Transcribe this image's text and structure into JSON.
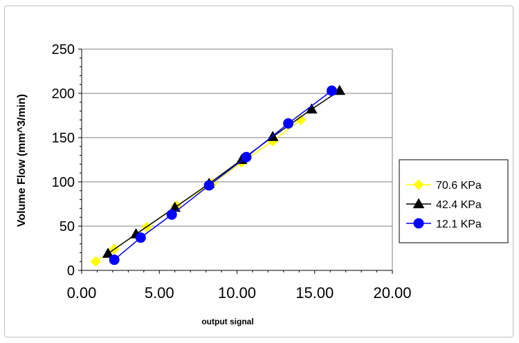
{
  "chart_data": {
    "type": "line",
    "title": "",
    "xlabel": "output signal",
    "ylabel": "Volume Flow (mm^3/min)",
    "xlim": [
      0,
      20
    ],
    "ylim": [
      0,
      250
    ],
    "x_ticks": [
      "0.00",
      "5.00",
      "10.00",
      "15.00",
      "20.00"
    ],
    "y_ticks": [
      "0",
      "50",
      "100",
      "150",
      "200",
      "250"
    ],
    "grid": "horizontal major",
    "legend_position": "right",
    "series": [
      {
        "name": "70.6 KPa",
        "color": "#ffff00",
        "marker": "diamond",
        "x": [
          0.9,
          2.1,
          4.2,
          6.1,
          8.4,
          10.3,
          12.3,
          14.1
        ],
        "y": [
          10,
          24,
          49,
          73,
          98,
          122,
          146,
          170
        ]
      },
      {
        "name": "42.4 KPa",
        "color": "#000000",
        "marker": "triangle",
        "x": [
          1.7,
          3.5,
          6.0,
          8.2,
          10.3,
          12.3,
          14.8,
          16.6
        ],
        "y": [
          19,
          41,
          71,
          98,
          125,
          151,
          182,
          203
        ]
      },
      {
        "name": "12.1 KPa",
        "color": "#0000ff",
        "marker": "circle",
        "x": [
          2.1,
          3.8,
          5.8,
          8.2,
          10.6,
          13.3,
          16.1
        ],
        "y": [
          12,
          37,
          63,
          96,
          128,
          166,
          203
        ]
      }
    ]
  }
}
